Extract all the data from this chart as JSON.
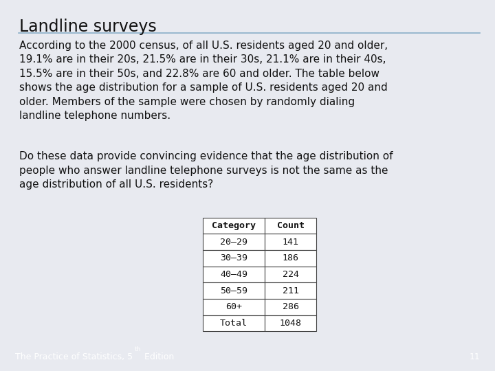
{
  "title": "Landline surveys",
  "paragraph1": "According to the 2000 census, of all U.S. residents aged 20 and older,\n19.1% are in their 20s, 21.5% are in their 30s, 21.1% are in their 40s,\n15.5% are in their 50s, and 22.8% are 60 and older. The table below\nshows the age distribution for a sample of U.S. residents aged 20 and\nolder. Members of the sample were chosen by randomly dialing\nlandline telephone numbers.",
  "paragraph2": "Do these data provide convincing evidence that the age distribution of\npeople who answer landline telephone surveys is not the same as the\nage distribution of all U.S. residents?",
  "table_headers": [
    "Category",
    "Count"
  ],
  "table_rows": [
    [
      "20–29",
      "141"
    ],
    [
      "30–39",
      "186"
    ],
    [
      "40–49",
      "224"
    ],
    [
      "50–59",
      "211"
    ],
    [
      "60+",
      "286"
    ],
    [
      "Total",
      "1048"
    ]
  ],
  "footer_text": "The Practice of Statistics, 5",
  "footer_superscript": "th",
  "footer_suffix": " Edition",
  "page_number": "11",
  "bg_color": "#e8eaf0",
  "footer_bg_color": "#4a6fa5",
  "title_line_color": "#8aaec8",
  "text_color": "#111111",
  "footer_text_color": "#ffffff",
  "title_fontsize": 17,
  "body_fontsize": 11,
  "table_fontsize": 9.5,
  "footer_fontsize": 9
}
